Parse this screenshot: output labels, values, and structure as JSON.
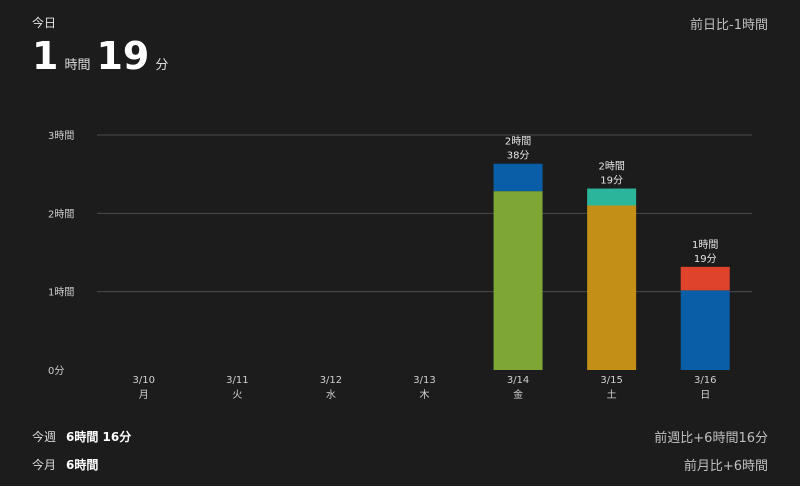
{
  "header": {
    "today_label": "今日",
    "hours_value": "1",
    "hours_unit": "時間",
    "minutes_value": "19",
    "minutes_unit": "分",
    "compare_prev_day": "前日比-1時間"
  },
  "summary": {
    "week_label": "今週",
    "week_value": "6時間 16分",
    "week_compare": "前週比+6時間16分",
    "month_label": "今月",
    "month_value": "6時間",
    "month_compare": "前月比+6時間"
  },
  "colors": {
    "background": "#1c1c1c",
    "blue": "#0a5ea8",
    "green": "#7ea635",
    "teal": "#2bb59b",
    "gold": "#c38f17",
    "red": "#e0432c"
  },
  "chart_data": {
    "type": "bar",
    "stacked": true,
    "y_unit": "minutes",
    "ylim": [
      0,
      180
    ],
    "y_ticks": [
      {
        "value": 0,
        "label": "0分"
      },
      {
        "value": 60,
        "label": "1時間"
      },
      {
        "value": 120,
        "label": "2時間"
      },
      {
        "value": 180,
        "label": "3時間"
      }
    ],
    "grid": true,
    "categories": [
      {
        "date": "3/10",
        "day": "月"
      },
      {
        "date": "3/11",
        "day": "火"
      },
      {
        "date": "3/12",
        "day": "水"
      },
      {
        "date": "3/13",
        "day": "木"
      },
      {
        "date": "3/14",
        "day": "金"
      },
      {
        "date": "3/15",
        "day": "土"
      },
      {
        "date": "3/16",
        "day": "日"
      }
    ],
    "bars": [
      {
        "total_line1": "",
        "total_line2": "",
        "segments": []
      },
      {
        "total_line1": "",
        "total_line2": "",
        "segments": []
      },
      {
        "total_line1": "",
        "total_line2": "",
        "segments": []
      },
      {
        "total_line1": "",
        "total_line2": "",
        "segments": []
      },
      {
        "total_line1": "2時間",
        "total_line2": "38分",
        "segments": [
          {
            "value": 137,
            "color": "#7ea635"
          },
          {
            "value": 21,
            "color": "#0a5ea8"
          }
        ]
      },
      {
        "total_line1": "2時間",
        "total_line2": "19分",
        "segments": [
          {
            "value": 126,
            "color": "#c38f17"
          },
          {
            "value": 13,
            "color": "#2bb59b"
          }
        ]
      },
      {
        "total_line1": "1時間",
        "total_line2": "19分",
        "segments": [
          {
            "value": 61,
            "color": "#0a5ea8"
          },
          {
            "value": 18,
            "color": "#e0432c"
          }
        ]
      }
    ]
  }
}
